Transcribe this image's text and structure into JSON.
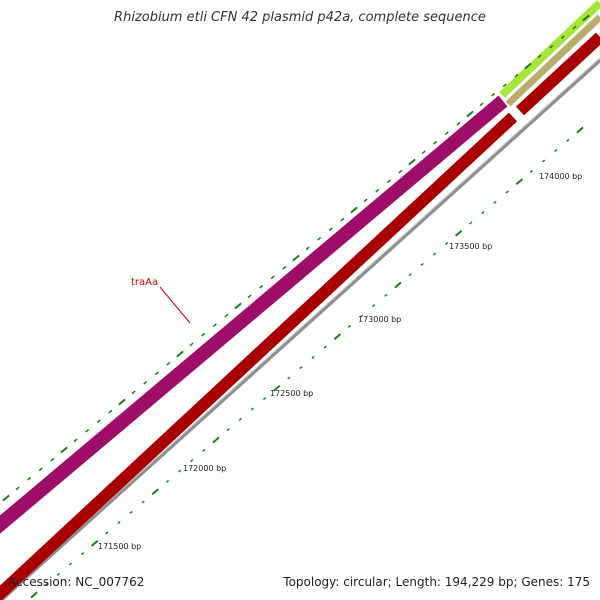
{
  "title": "Rhizobium etli CFN 42 plasmid p42a, complete sequence",
  "footer": {
    "accession": "Accession: NC_007762",
    "summary": "Topology: circular; Length: 194,229 bp; Genes: 175"
  },
  "colors": {
    "gene_magenta": "#e8189a",
    "gene_red": "#f40000",
    "gene_lime": "#a6e63a",
    "gene_olive": "#b9ad6e",
    "backbone_gray": "#8f8f8f",
    "tick_green": "#1e7a1e",
    "label_red": "#d40000"
  },
  "gene_labels": [
    {
      "name": "traAa"
    }
  ],
  "scale_ticks": [
    {
      "label": "171500 bp"
    },
    {
      "label": "172000 bp"
    },
    {
      "label": "172500 bp"
    },
    {
      "label": "173000 bp"
    },
    {
      "label": "173500 bp"
    },
    {
      "label": "174000 bp"
    }
  ]
}
